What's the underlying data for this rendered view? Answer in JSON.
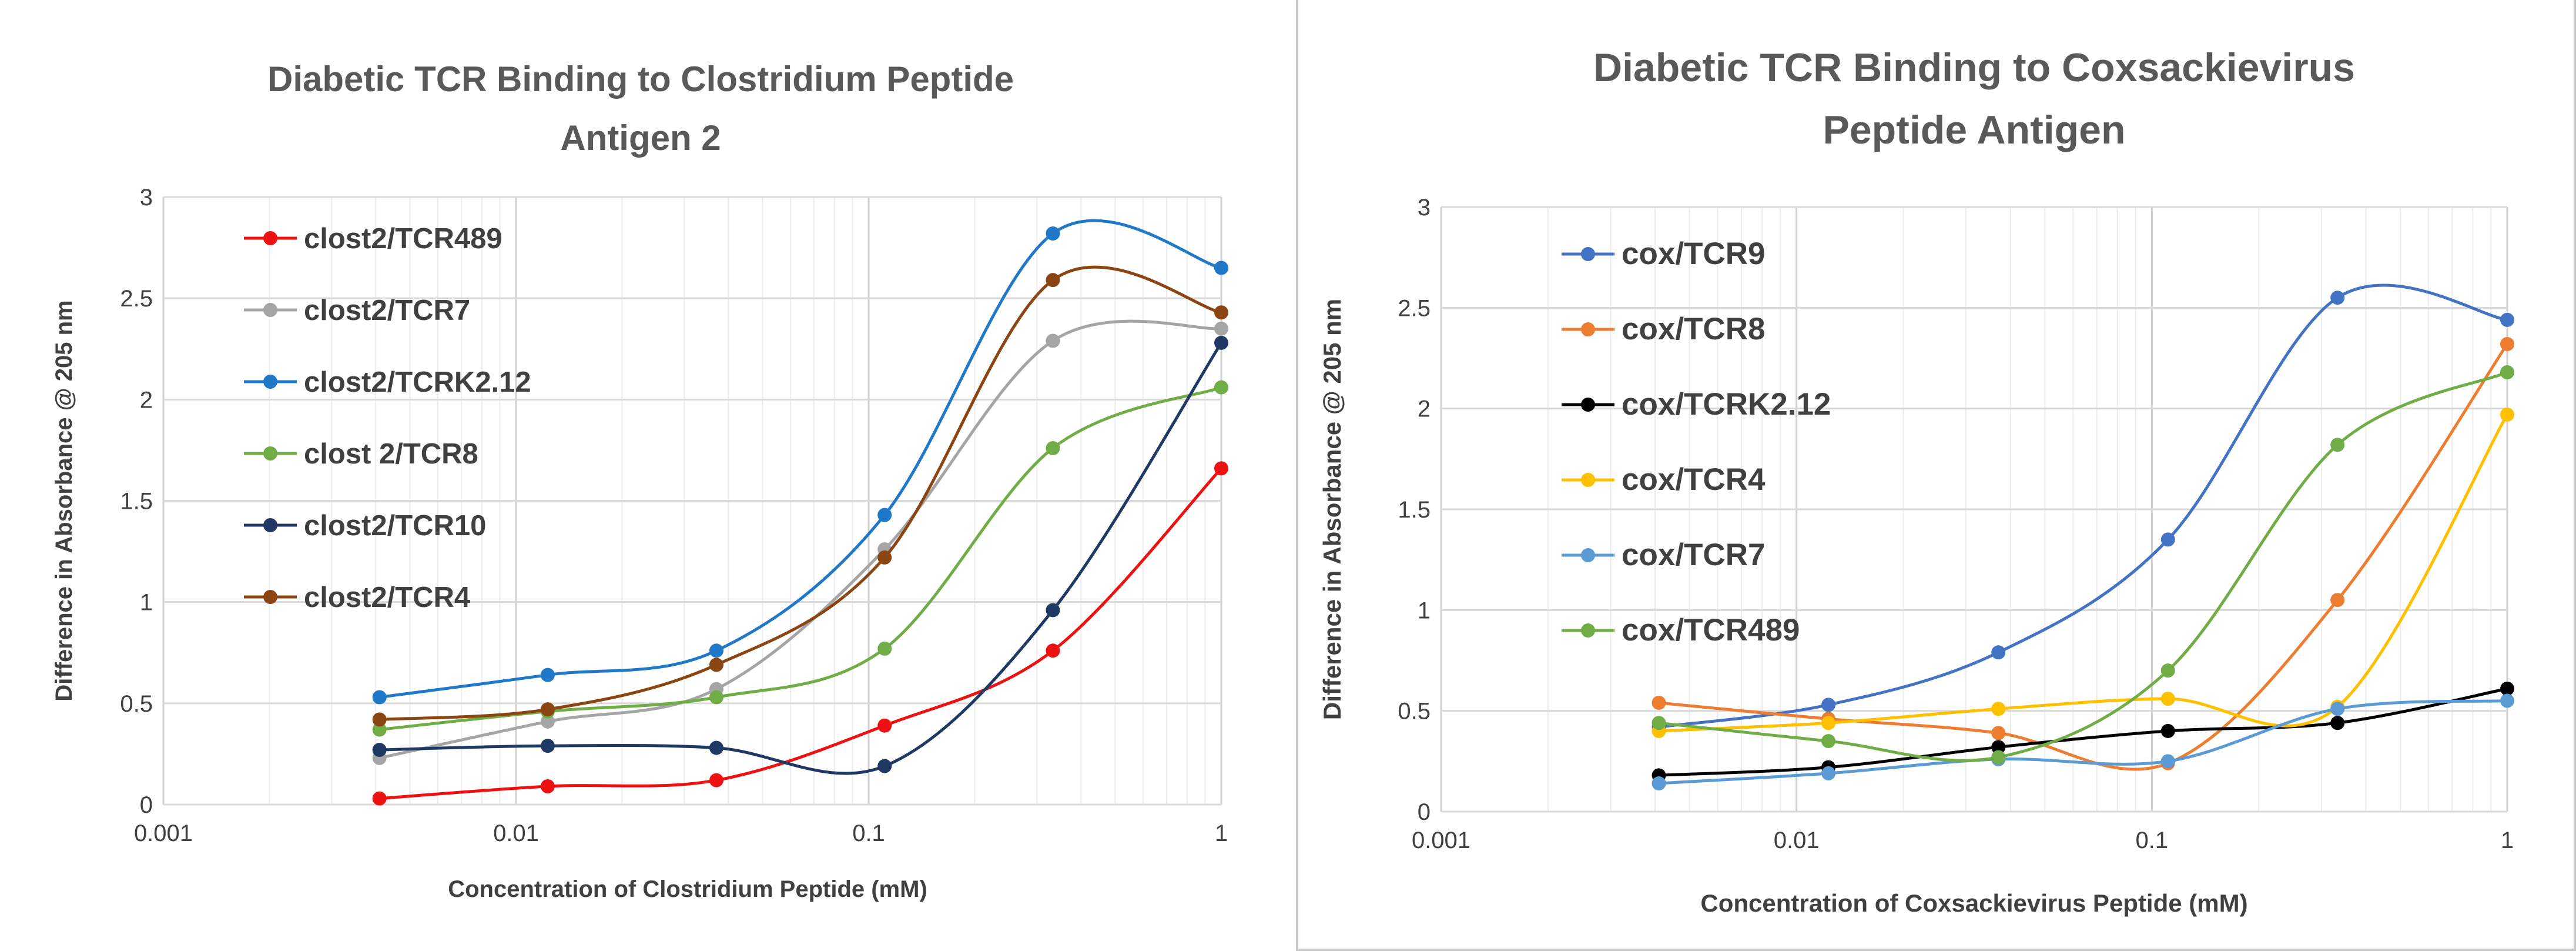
{
  "chart_data": [
    {
      "type": "line",
      "smooth": true,
      "title_lines": [
        "Diabetic TCR Binding to Clostridium Peptide",
        "Antigen 2"
      ],
      "xlabel": "Concentration of  Clostridium Peptide (mM)",
      "ylabel": "Difference in Absorbance @ 205 nm",
      "xscale": "log",
      "xlim": [
        0.001,
        1
      ],
      "ylim": [
        0,
        3
      ],
      "xticks": [
        0.001,
        0.01,
        0.1,
        1
      ],
      "xtick_labels": [
        "0.001",
        "0.01",
        "0.1",
        "1"
      ],
      "yticks": [
        0,
        0.5,
        1,
        1.5,
        2,
        2.5,
        3
      ],
      "ytick_labels": [
        "0",
        "0.5",
        "1",
        "1.5",
        "2",
        "2.5",
        "3"
      ],
      "grid": "major and minor vertical, major horizontal",
      "legend_position": "top-left",
      "x": [
        0.0041,
        0.0123,
        0.037,
        0.111,
        0.333,
        1
      ],
      "series": [
        {
          "name": "clost2/TCR489",
          "color": "#ee1111",
          "values": [
            0.03,
            0.09,
            0.12,
            0.39,
            0.76,
            1.66
          ]
        },
        {
          "name": "clost2/TCR7",
          "color": "#a5a5a5",
          "values": [
            0.23,
            0.41,
            0.57,
            1.26,
            2.29,
            2.35
          ]
        },
        {
          "name": "clost2/TCRK2.12",
          "color": "#1f78c8",
          "values": [
            0.53,
            0.64,
            0.76,
            1.43,
            2.82,
            2.65
          ]
        },
        {
          "name": "clost 2/TCR8",
          "color": "#70ad47",
          "values": [
            0.37,
            0.46,
            0.53,
            0.77,
            1.76,
            2.06
          ]
        },
        {
          "name": "clost2/TCR10",
          "color": "#203864",
          "values": [
            0.27,
            0.29,
            0.28,
            0.19,
            0.96,
            2.28
          ]
        },
        {
          "name": "clost2/TCR4",
          "color": "#8b4513",
          "values": [
            0.42,
            0.47,
            0.69,
            1.22,
            2.59,
            2.43
          ]
        }
      ]
    },
    {
      "type": "line",
      "smooth": true,
      "title_lines": [
        "Diabetic TCR Binding to Coxsackievirus",
        "Peptide Antigen"
      ],
      "xlabel": "Concentration of Coxsackievirus Peptide  (mM)",
      "ylabel": "Difference in Absorbance @ 205 nm",
      "xscale": "log",
      "xlim": [
        0.001,
        1
      ],
      "ylim": [
        0,
        3
      ],
      "xticks": [
        0.001,
        0.01,
        0.1,
        1
      ],
      "xtick_labels": [
        "0.001",
        "0.01",
        "0.1",
        "1"
      ],
      "yticks": [
        0,
        0.5,
        1,
        1.5,
        2,
        2.5,
        3
      ],
      "ytick_labels": [
        "0",
        "0.5",
        "1",
        "1.5",
        "2",
        "2.5",
        "3"
      ],
      "grid": "major and minor vertical, major horizontal",
      "legend_position": "top-left",
      "x": [
        0.0041,
        0.0123,
        0.037,
        0.111,
        0.333,
        1
      ],
      "series": [
        {
          "name": "cox/TCR9",
          "color": "#4472c4",
          "values": [
            0.42,
            0.53,
            0.79,
            1.35,
            2.55,
            2.44
          ]
        },
        {
          "name": "cox/TCR8",
          "color": "#ed7d31",
          "values": [
            0.54,
            0.46,
            0.39,
            0.24,
            1.05,
            2.32
          ]
        },
        {
          "name": "cox/TCRK2.12",
          "color": "#000000",
          "values": [
            0.18,
            0.22,
            0.32,
            0.4,
            0.44,
            0.61
          ]
        },
        {
          "name": "cox/TCR4",
          "color": "#ffc000",
          "values": [
            0.4,
            0.44,
            0.51,
            0.56,
            0.52,
            1.97
          ]
        },
        {
          "name": "cox/TCR7",
          "color": "#5b9bd5",
          "values": [
            0.14,
            0.19,
            0.26,
            0.25,
            0.51,
            0.55
          ]
        },
        {
          "name": "cox/TCR489",
          "color": "#70ad47",
          "values": [
            0.44,
            0.35,
            0.27,
            0.7,
            1.82,
            2.18
          ]
        }
      ]
    }
  ]
}
